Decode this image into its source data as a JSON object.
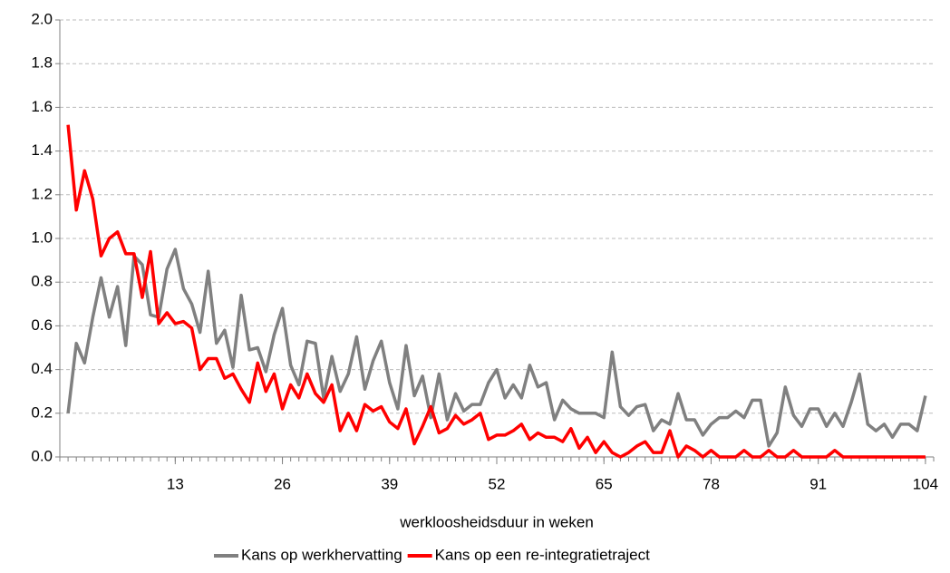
{
  "chart_data": {
    "type": "line",
    "x_label": "werkloosheidsduur in weken",
    "x": [
      0,
      1,
      2,
      3,
      4,
      5,
      6,
      7,
      8,
      9,
      10,
      11,
      12,
      13,
      14,
      15,
      16,
      17,
      18,
      19,
      20,
      21,
      22,
      23,
      24,
      25,
      26,
      27,
      28,
      29,
      30,
      31,
      32,
      33,
      34,
      35,
      36,
      37,
      38,
      39,
      40,
      41,
      42,
      43,
      44,
      45,
      46,
      47,
      48,
      49,
      50,
      51,
      52,
      53,
      54,
      55,
      56,
      57,
      58,
      59,
      60,
      61,
      62,
      63,
      64,
      65,
      66,
      67,
      68,
      69,
      70,
      71,
      72,
      73,
      74,
      75,
      76,
      77,
      78,
      79,
      80,
      81,
      82,
      83,
      84,
      85,
      86,
      87,
      88,
      89,
      90,
      91,
      92,
      93,
      94,
      95,
      96,
      97,
      98,
      99,
      100,
      101,
      102,
      103,
      104
    ],
    "series": [
      {
        "name": "Kans op werkhervatting",
        "color": "#808080",
        "values": [
          0.2,
          0.52,
          0.43,
          0.64,
          0.82,
          0.64,
          0.78,
          0.51,
          0.92,
          0.88,
          0.65,
          0.64,
          0.86,
          0.95,
          0.77,
          0.7,
          0.57,
          0.85,
          0.52,
          0.58,
          0.41,
          0.74,
          0.49,
          0.5,
          0.39,
          0.56,
          0.68,
          0.42,
          0.33,
          0.53,
          0.52,
          0.27,
          0.46,
          0.3,
          0.38,
          0.55,
          0.31,
          0.44,
          0.53,
          0.34,
          0.22,
          0.51,
          0.28,
          0.37,
          0.18,
          0.38,
          0.17,
          0.29,
          0.21,
          0.24,
          0.24,
          0.34,
          0.4,
          0.27,
          0.33,
          0.27,
          0.42,
          0.32,
          0.34,
          0.17,
          0.26,
          0.22,
          0.2,
          0.2,
          0.2,
          0.18,
          0.48,
          0.23,
          0.19,
          0.23,
          0.24,
          0.12,
          0.17,
          0.15,
          0.29,
          0.17,
          0.17,
          0.1,
          0.15,
          0.18,
          0.18,
          0.21,
          0.18,
          0.26,
          0.26,
          0.05,
          0.11,
          0.32,
          0.19,
          0.14,
          0.22,
          0.22,
          0.14,
          0.2,
          0.14,
          0.25,
          0.38,
          0.15,
          0.12,
          0.15,
          0.09,
          0.15,
          0.15,
          0.12,
          0.28
        ]
      },
      {
        "name": "Kans op een re-integratietraject",
        "color": "#ff0000",
        "values": [
          1.52,
          1.13,
          1.31,
          1.18,
          0.92,
          1.0,
          1.03,
          0.93,
          0.93,
          0.73,
          0.94,
          0.61,
          0.66,
          0.61,
          0.62,
          0.59,
          0.4,
          0.45,
          0.45,
          0.36,
          0.38,
          0.31,
          0.25,
          0.43,
          0.3,
          0.38,
          0.22,
          0.33,
          0.27,
          0.38,
          0.29,
          0.25,
          0.33,
          0.12,
          0.2,
          0.12,
          0.24,
          0.21,
          0.23,
          0.16,
          0.13,
          0.22,
          0.06,
          0.14,
          0.23,
          0.11,
          0.13,
          0.19,
          0.15,
          0.17,
          0.2,
          0.08,
          0.1,
          0.1,
          0.12,
          0.15,
          0.08,
          0.11,
          0.09,
          0.09,
          0.07,
          0.13,
          0.04,
          0.09,
          0.02,
          0.07,
          0.02,
          0,
          0.02,
          0.05,
          0.07,
          0.02,
          0.02,
          0.12,
          0,
          0.05,
          0.03,
          0,
          0.03,
          0,
          0,
          0,
          0.03,
          0,
          0,
          0.03,
          0,
          0,
          0.03,
          0,
          0,
          0,
          0,
          0.03,
          0,
          0,
          0,
          0,
          0,
          0,
          0,
          0,
          0,
          0,
          0
        ]
      }
    ],
    "xlim": [
      -1,
      105
    ],
    "xticks": [
      13,
      26,
      39,
      52,
      65,
      78,
      91,
      104
    ],
    "ylim": [
      0,
      2
    ],
    "yticks": [
      {
        "value": 0,
        "label": "0.0"
      },
      {
        "value": 0.2,
        "label": "0.2"
      },
      {
        "value": 0.4,
        "label": "0.4"
      },
      {
        "value": 0.6,
        "label": "0.6"
      },
      {
        "value": 0.8,
        "label": "0.8"
      },
      {
        "value": 1,
        "label": "1.0"
      },
      {
        "value": 1.2,
        "label": "1.2"
      },
      {
        "value": 1.4,
        "label": "1.4"
      },
      {
        "value": 1.6,
        "label": "1.6"
      },
      {
        "value": 1.8,
        "label": "1.8"
      },
      {
        "value": 2,
        "label": "2.0"
      }
    ],
    "grid": true,
    "legend": "bottom"
  }
}
